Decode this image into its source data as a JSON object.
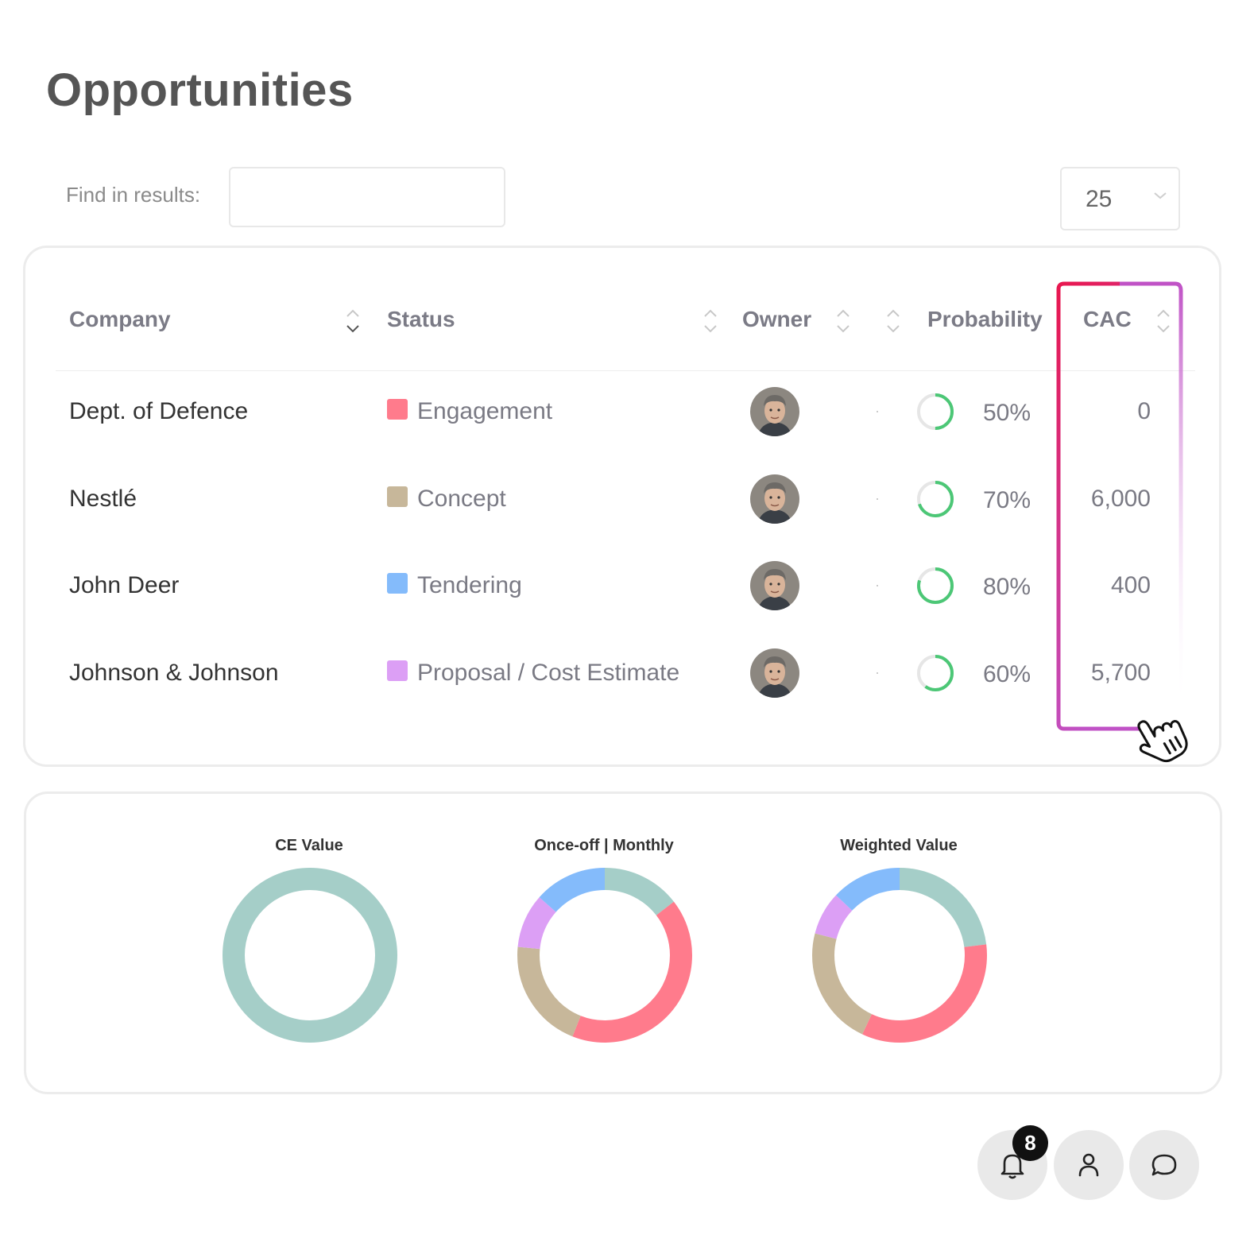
{
  "page": {
    "title": "Opportunities"
  },
  "search": {
    "label": "Find in results:",
    "value": "",
    "placeholder": ""
  },
  "page_size": {
    "value": "25"
  },
  "table": {
    "columns": {
      "company": "Company",
      "status": "Status",
      "owner": "Owner",
      "probability": "Probability",
      "cac": "CAC"
    },
    "rows": [
      {
        "company": "Dept. of Defence",
        "status": "Engagement",
        "status_color": "#ff7b8c",
        "probability": "50%",
        "probability_value": 0.5,
        "cac": "0"
      },
      {
        "company": "Nestlé",
        "status": "Concept",
        "status_color": "#c7b79a",
        "probability": "70%",
        "probability_value": 0.7,
        "cac": "6,000"
      },
      {
        "company": "John Deer",
        "status": "Tendering",
        "status_color": "#84bbfb",
        "probability": "80%",
        "probability_value": 0.8,
        "cac": "400"
      },
      {
        "company": "Johnson & Johnson",
        "status": "Proposal / Cost Estimate",
        "status_color": "#dc9ff5",
        "probability": "60%",
        "probability_value": 0.6,
        "cac": "5,700"
      }
    ]
  },
  "colors": {
    "teal": "#a5cec8",
    "pink": "#ff7b8c",
    "beige": "#c7b79a",
    "blue": "#84bbfb",
    "purple": "#dc9ff5",
    "progress_green": "#4cc776",
    "highlight_start": "#e8174f",
    "highlight_end": "#c052c6"
  },
  "chart_data": [
    {
      "type": "pie",
      "title": "CE Value",
      "slices": [
        {
          "color": "#a5cec8",
          "value": 1.0
        }
      ]
    },
    {
      "type": "pie",
      "title": "Once-off | Monthly",
      "slices": [
        {
          "color": "#a5cec8",
          "value": 0.145
        },
        {
          "color": "#ff7b8c",
          "value": 0.415
        },
        {
          "color": "#c7b79a",
          "value": 0.205
        },
        {
          "color": "#dc9ff5",
          "value": 0.1
        },
        {
          "color": "#84bbfb",
          "value": 0.135
        }
      ]
    },
    {
      "type": "pie",
      "title": "Weighted Value",
      "slices": [
        {
          "color": "#a5cec8",
          "value": 0.23
        },
        {
          "color": "#ff7b8c",
          "value": 0.34
        },
        {
          "color": "#c7b79a",
          "value": 0.22
        },
        {
          "color": "#dc9ff5",
          "value": 0.08
        },
        {
          "color": "#84bbfb",
          "value": 0.13
        }
      ]
    }
  ],
  "actions": {
    "notifications_count": "8",
    "icons": [
      "bell-icon",
      "user-icon",
      "chat-icon"
    ]
  }
}
